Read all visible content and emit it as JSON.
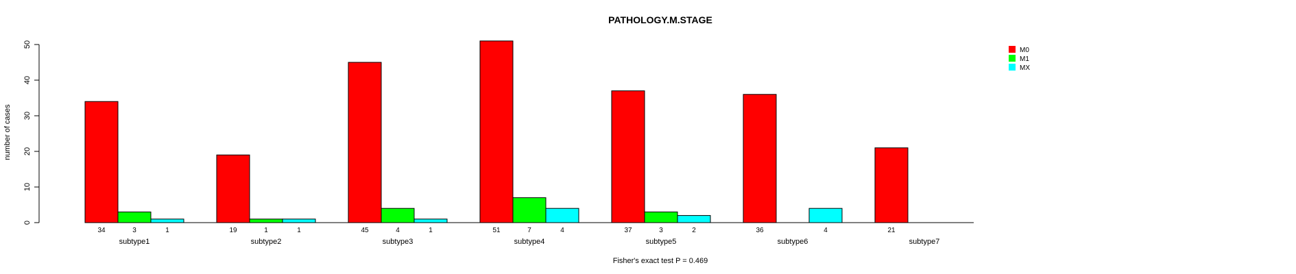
{
  "chart_data": {
    "type": "bar",
    "title": "PATHOLOGY.M.STAGE",
    "xlabel": "",
    "ylabel": "number of cases",
    "footnote": "Fisher's exact test P = 0.469",
    "ylim": [
      0,
      51
    ],
    "yticks": [
      0,
      10,
      20,
      30,
      40,
      50
    ],
    "categories": [
      "subtype1",
      "subtype2",
      "subtype3",
      "subtype4",
      "subtype5",
      "subtype6",
      "subtype7"
    ],
    "series": [
      {
        "name": "M0",
        "color": "#ff0000",
        "values": [
          34,
          19,
          45,
          51,
          37,
          36,
          21
        ]
      },
      {
        "name": "M1",
        "color": "#00ff00",
        "values": [
          3,
          1,
          4,
          7,
          3,
          0,
          0
        ]
      },
      {
        "name": "MX",
        "color": "#00ffff",
        "values": [
          1,
          1,
          1,
          4,
          2,
          4,
          0
        ]
      }
    ],
    "data_labels": [
      [
        "34",
        "3",
        "1"
      ],
      [
        "19",
        "1",
        "1"
      ],
      [
        "45",
        "4",
        "1"
      ],
      [
        "51",
        "7",
        "4"
      ],
      [
        "37",
        "3",
        "2"
      ],
      [
        "36",
        "",
        "4"
      ],
      [
        "21",
        "",
        ""
      ]
    ],
    "legend_position": "top-right",
    "grid": false
  }
}
